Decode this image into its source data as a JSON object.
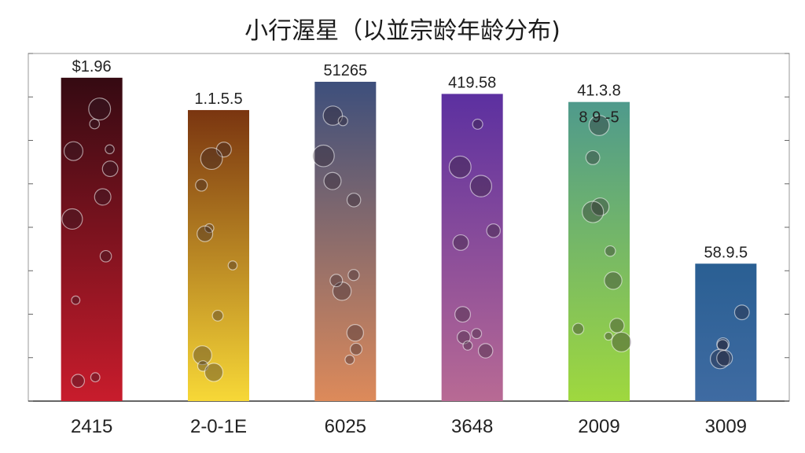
{
  "chart_data": {
    "type": "bar",
    "title": "小行渥星（以並宗龄年龄分布)",
    "categories": [
      "2415",
      "2-0-1E",
      "6025",
      "3648",
      "2009",
      "3009"
    ],
    "values": [
      80,
      72,
      79,
      76,
      74,
      34
    ],
    "value_labels": [
      "$1.96",
      "1.1.5.5",
      "51265",
      "419.58",
      "41.3.8",
      "58.9.5"
    ],
    "secondary_labels": [
      "",
      "",
      "",
      "",
      "8 9 -5",
      ""
    ],
    "ylim": [
      0,
      86
    ],
    "grid": false,
    "legend": "none",
    "bar_gradients": [
      [
        "#350a12",
        "#c81c2c"
      ],
      [
        "#7a3510",
        "#f7d837"
      ],
      [
        "#3d4f7c",
        "#dd8a5a"
      ],
      [
        "#5c30a0",
        "#b86a94"
      ],
      [
        "#4f9a8c",
        "#9fd83e"
      ],
      [
        "#2a5f93",
        "#3f6ba2"
      ]
    ]
  }
}
